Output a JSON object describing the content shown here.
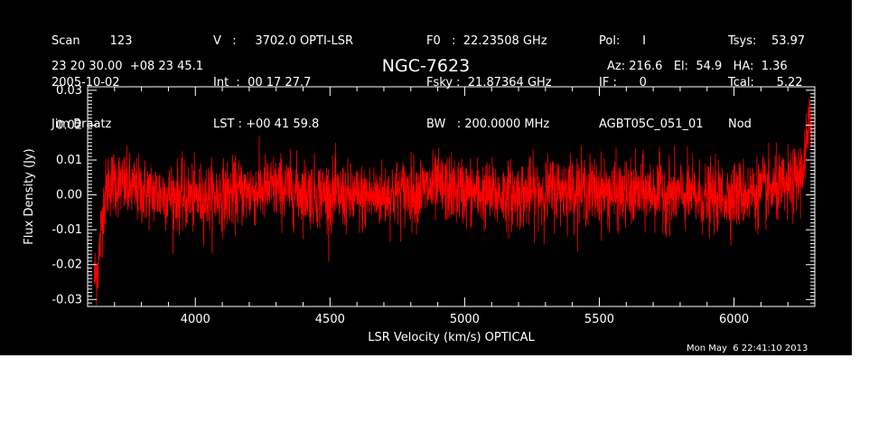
{
  "header": {
    "col1": [
      "Scan        123",
      "2005-10-02",
      "Jim Braatz"
    ],
    "col2": [
      "V   :     3702.0 OPTI-LSR",
      "Int  :  00 17 27.7",
      "LST : +00 41 59.8"
    ],
    "col3": [
      "F0   :  22.23508 GHz",
      "Fsky :  21.87364 GHz",
      "BW   : 200.0000 MHz"
    ],
    "col4": [
      "Pol:      I",
      "IF :      0",
      "AGBT05C_051_01"
    ],
    "col5": [
      "Tsys:    53.97",
      "Tcal:      5.22",
      "Nod"
    ],
    "coords": "23 20 30.00  +08 23 45.1",
    "source": "NGC-7623",
    "azel": "Az: 216.6   El:  54.9   HA:  1.36"
  },
  "timestamp": "Mon May  6 22:41:10 2013",
  "colors": {
    "background": "#000000",
    "axes": "#ffffff",
    "trace": "#ff0000"
  },
  "chart_data": {
    "type": "line",
    "title": "NGC-7623",
    "xlabel": "LSR Velocity (km/s) OPTICAL",
    "ylabel": "Flux Density (Jy)",
    "xlim": [
      3600,
      6300
    ],
    "ylim": [
      -0.032,
      0.031
    ],
    "xticks": [
      4000,
      4500,
      5000,
      5500,
      6000
    ],
    "xtick_labels": [
      "4000",
      "4500",
      "5000",
      "5500",
      "6000"
    ],
    "yticks": [
      -0.03,
      -0.02,
      -0.01,
      0.0,
      0.01,
      0.02,
      0.03
    ],
    "ytick_labels": [
      "-0.03",
      "-0.02",
      "-0.01",
      "0.00",
      "0.01",
      "0.02",
      "0.03"
    ],
    "grid": false,
    "series": [
      {
        "x": [
          3625,
          3640,
          3650,
          3660,
          3675,
          3700,
          3750,
          3800,
          3900,
          4000,
          4100,
          4200,
          4300,
          4400,
          4500,
          4600,
          4700,
          4800,
          4900,
          5000,
          5100,
          5200,
          5300,
          5400,
          5500,
          5600,
          5700,
          5800,
          5900,
          6000,
          6100,
          6200,
          6230,
          6250,
          6260,
          6270,
          6280,
          6290
        ],
        "values": [
          -0.024,
          -0.02,
          -0.01,
          -0.002,
          0.003,
          0.004,
          0.002,
          0.001,
          0.0,
          -0.001,
          0.0,
          0.001,
          0.002,
          0.001,
          0.0,
          -0.001,
          0.0,
          0.001,
          0.002,
          0.001,
          0.0,
          0.0,
          0.001,
          0.002,
          0.001,
          0.0,
          0.001,
          0.0,
          -0.001,
          0.0,
          0.001,
          0.002,
          0.004,
          0.006,
          0.01,
          0.014,
          0.02,
          0.022
        ]
      }
    ]
  }
}
